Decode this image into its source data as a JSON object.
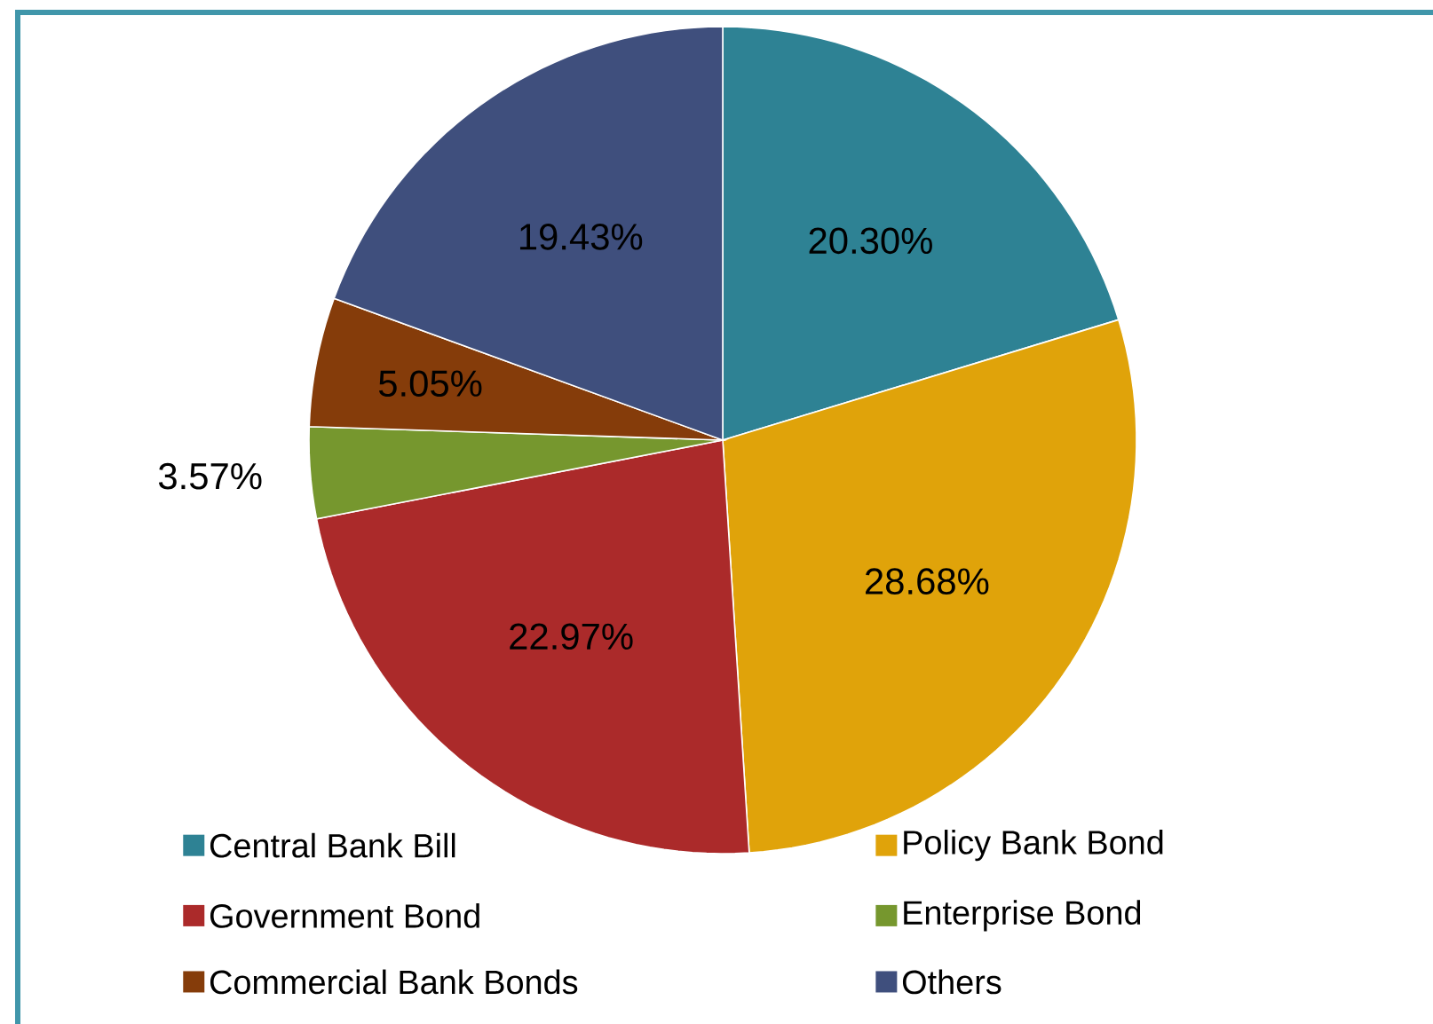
{
  "chart_data": {
    "type": "pie",
    "categories": [
      "Central Bank Bill",
      "Policy Bank Bond",
      "Government Bond",
      "Enterprise Bond",
      "Commercial Bank Bonds",
      "Others"
    ],
    "values": [
      20.3,
      28.68,
      22.97,
      3.57,
      5.05,
      19.43
    ],
    "value_labels": [
      "20.30%",
      "28.68%",
      "22.97%",
      "3.57%",
      "5.05%",
      "19.43%"
    ],
    "colors": [
      "#2e8294",
      "#e0a30a",
      "#ab2a2a",
      "#76972e",
      "#853c0a",
      "#3f4f7d"
    ],
    "legend": "bottom"
  }
}
